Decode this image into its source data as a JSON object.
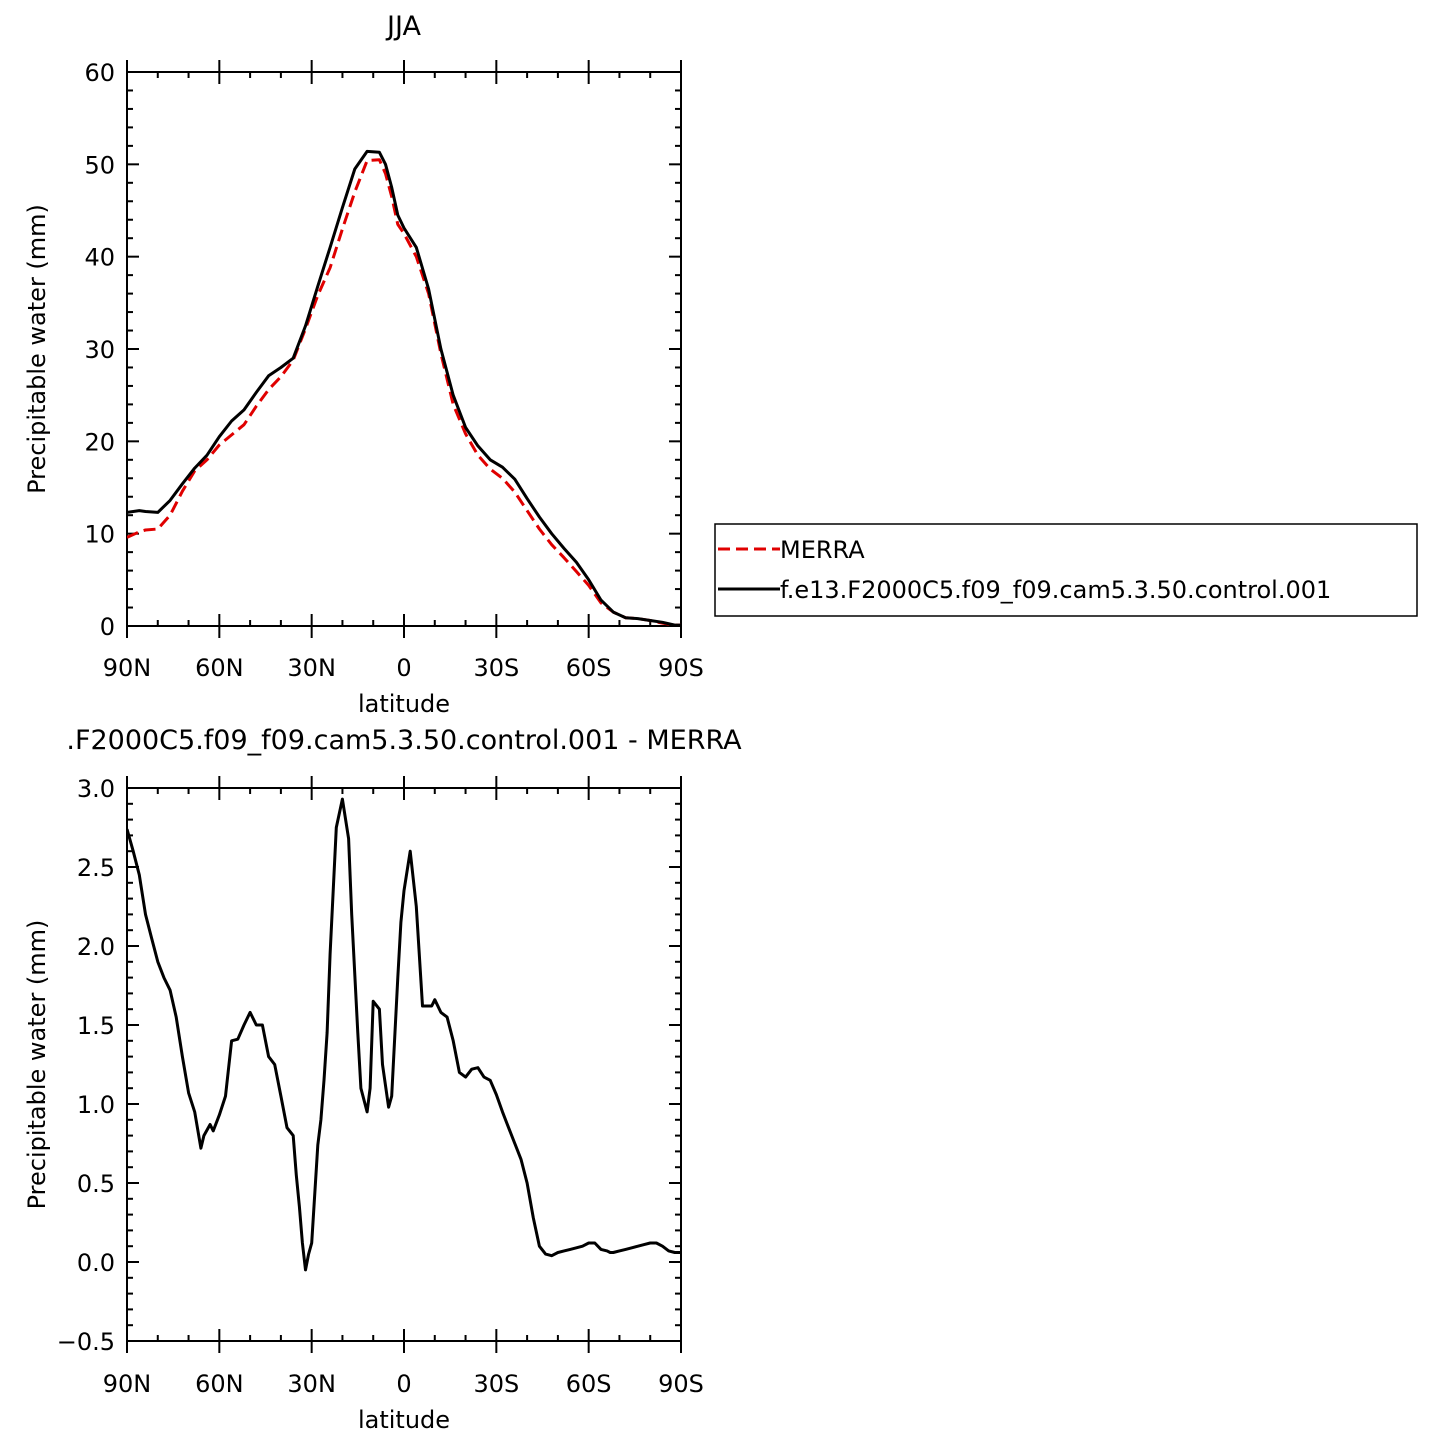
{
  "chart_data": [
    {
      "type": "line",
      "title": "JJA",
      "xlabel": "latitude",
      "ylabel": "Precipitable water (mm)",
      "xlim": [
        90,
        -90
      ],
      "ylim": [
        0,
        60
      ],
      "xticks": [
        90,
        60,
        30,
        0,
        -30,
        -60,
        -90
      ],
      "xtick_labels": [
        "90N",
        "60N",
        "30N",
        "0",
        "30S",
        "60S",
        "90S"
      ],
      "yticks": [
        0,
        10,
        20,
        30,
        40,
        50,
        60
      ],
      "ytick_labels": [
        "0",
        "10",
        "20",
        "30",
        "40",
        "50",
        "60"
      ],
      "legend": "right",
      "series": [
        {
          "name": "MERRA",
          "color": "#e00000",
          "dash": "dashed",
          "x": [
            90,
            86,
            84,
            80,
            76,
            72,
            68,
            64,
            60,
            56,
            52,
            48,
            44,
            40,
            36,
            32,
            28,
            24,
            20,
            16,
            12,
            8,
            6,
            4,
            2,
            0,
            -4,
            -8,
            -12,
            -16,
            -20,
            -24,
            -28,
            -32,
            -36,
            -40,
            -44,
            -48,
            -52,
            -56,
            -60,
            -64,
            -68,
            -72,
            -76,
            -80,
            -84,
            -88,
            -90
          ],
          "y": [
            9.6,
            10.2,
            10.4,
            10.5,
            12.0,
            14.6,
            16.8,
            18.0,
            19.6,
            20.7,
            21.8,
            23.8,
            25.6,
            27.0,
            28.8,
            32.2,
            35.8,
            38.8,
            43.0,
            47.0,
            50.4,
            50.5,
            49.0,
            46.5,
            43.5,
            42.5,
            40.0,
            36.0,
            29.5,
            24.0,
            20.8,
            18.5,
            17.0,
            16.0,
            14.5,
            12.5,
            10.5,
            8.8,
            7.4,
            5.9,
            4.4,
            2.5,
            1.5,
            0.9,
            0.8,
            0.6,
            0.3,
            0.1,
            0.1
          ]
        },
        {
          "name": "f.e13.F2000C5.f09_f09.cam5.3.50.control.001",
          "color": "#000000",
          "dash": "solid",
          "x": [
            90,
            86,
            84,
            80,
            76,
            72,
            68,
            64,
            60,
            56,
            52,
            48,
            44,
            40,
            36,
            32,
            28,
            24,
            20,
            16,
            12,
            8,
            6,
            4,
            2,
            0,
            -4,
            -8,
            -12,
            -16,
            -20,
            -24,
            -28,
            -32,
            -36,
            -40,
            -44,
            -48,
            -52,
            -56,
            -60,
            -64,
            -68,
            -72,
            -76,
            -80,
            -84,
            -88,
            -90
          ],
          "y": [
            12.3,
            12.5,
            12.4,
            12.3,
            13.6,
            15.4,
            17.1,
            18.5,
            20.5,
            22.2,
            23.4,
            25.3,
            27.1,
            28.0,
            29.0,
            32.5,
            36.8,
            41.0,
            45.3,
            49.5,
            51.4,
            51.3,
            50.0,
            47.5,
            44.5,
            43.1,
            41.0,
            36.5,
            30.0,
            25.0,
            21.5,
            19.5,
            18.0,
            17.2,
            15.9,
            13.8,
            11.8,
            10.0,
            8.4,
            6.9,
            5.0,
            2.8,
            1.5,
            0.9,
            0.8,
            0.6,
            0.4,
            0.1,
            0.1
          ]
        }
      ]
    },
    {
      "type": "line",
      "title": ".F2000C5.f09_f09.cam5.3.50.control.001 - MERRA",
      "xlabel": "latitude",
      "ylabel": "Precipitable water (mm)",
      "xlim": [
        90,
        -90
      ],
      "ylim": [
        -0.5,
        3.0
      ],
      "xticks": [
        90,
        60,
        30,
        0,
        -30,
        -60,
        -90
      ],
      "xtick_labels": [
        "90N",
        "60N",
        "30N",
        "0",
        "30S",
        "60S",
        "90S"
      ],
      "yticks": [
        -0.5,
        0.0,
        0.5,
        1.0,
        1.5,
        2.0,
        2.5,
        3.0
      ],
      "ytick_labels": [
        "−0.5",
        "0.0",
        "0.5",
        "1.0",
        "1.5",
        "2.0",
        "2.5",
        "3.0"
      ],
      "series": [
        {
          "color": "#000000",
          "dash": "solid",
          "x": [
            90,
            88,
            86,
            84,
            82,
            80,
            78,
            76,
            74,
            72,
            70,
            68,
            66,
            65,
            63,
            62,
            60,
            58,
            56,
            54,
            52,
            50,
            48,
            46,
            44,
            42,
            40,
            38,
            36,
            35,
            34,
            33,
            32,
            31,
            30,
            28,
            27,
            26,
            25,
            24,
            22,
            20,
            18,
            17,
            15,
            14,
            12,
            11,
            10,
            8,
            7,
            5,
            4,
            2,
            1,
            0,
            -2,
            -4,
            -6,
            -8,
            -9,
            -10,
            -12,
            -14,
            -16,
            -18,
            -20,
            -22,
            -24,
            -26,
            -28,
            -30,
            -32,
            -34,
            -36,
            -38,
            -40,
            -42,
            -44,
            -46,
            -48,
            -50,
            -52,
            -54,
            -56,
            -58,
            -60,
            -62,
            -64,
            -66,
            -67,
            -68,
            -70,
            -72,
            -74,
            -76,
            -78,
            -80,
            -82,
            -84,
            -86,
            -88,
            -90
          ],
          "y": [
            2.74,
            2.6,
            2.45,
            2.2,
            2.05,
            1.9,
            1.8,
            1.72,
            1.55,
            1.3,
            1.07,
            0.95,
            0.72,
            0.8,
            0.87,
            0.83,
            0.93,
            1.05,
            1.4,
            1.41,
            1.5,
            1.58,
            1.5,
            1.5,
            1.3,
            1.25,
            1.05,
            0.85,
            0.8,
            0.55,
            0.35,
            0.12,
            -0.05,
            0.05,
            0.12,
            0.74,
            0.9,
            1.15,
            1.45,
            1.95,
            2.75,
            2.93,
            2.68,
            2.2,
            1.45,
            1.1,
            0.95,
            1.1,
            1.65,
            1.6,
            1.25,
            0.98,
            1.05,
            1.8,
            2.15,
            2.35,
            2.6,
            2.25,
            1.62,
            1.62,
            1.62,
            1.66,
            1.58,
            1.55,
            1.4,
            1.2,
            1.17,
            1.22,
            1.23,
            1.17,
            1.15,
            1.06,
            0.95,
            0.85,
            0.75,
            0.65,
            0.5,
            0.28,
            0.1,
            0.05,
            0.04,
            0.06,
            0.07,
            0.08,
            0.09,
            0.1,
            0.12,
            0.12,
            0.08,
            0.07,
            0.06,
            0.06,
            0.07,
            0.08,
            0.09,
            0.1,
            0.11,
            0.12,
            0.12,
            0.1,
            0.07,
            0.06,
            0.06
          ]
        }
      ]
    }
  ]
}
